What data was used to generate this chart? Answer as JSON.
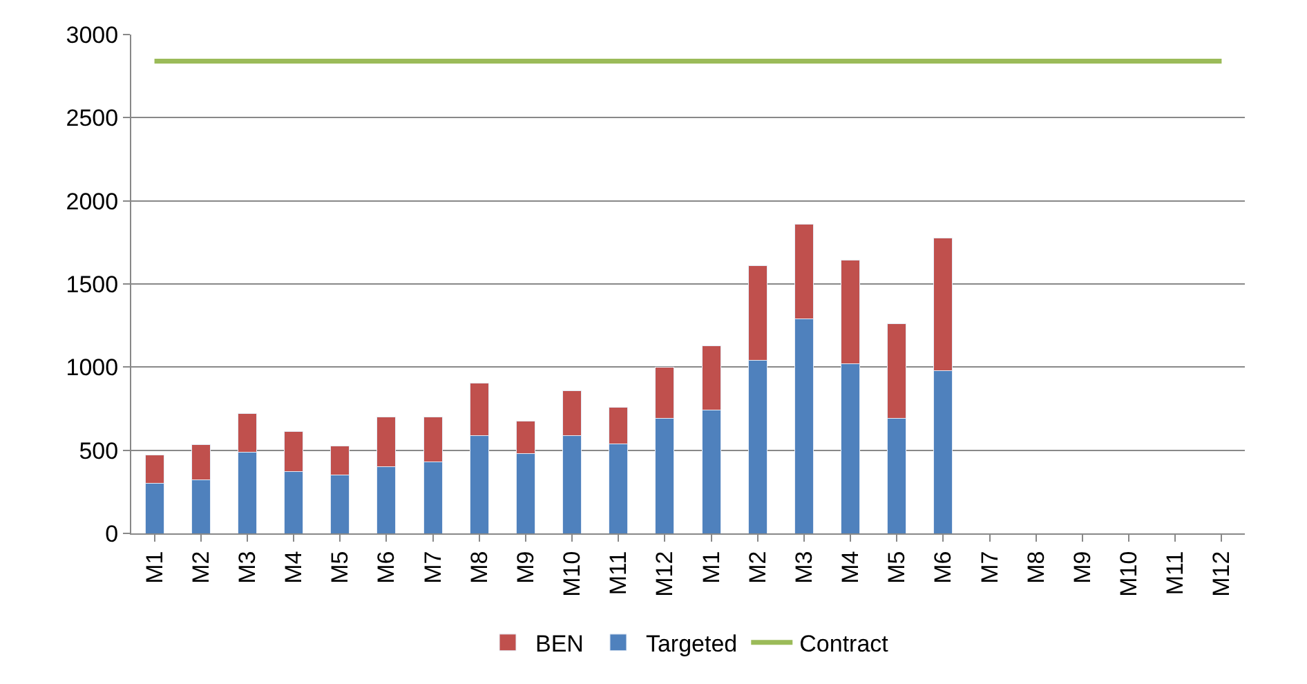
{
  "chart_data": {
    "type": "bar",
    "stacked": true,
    "categories": [
      "M1",
      "M2",
      "M3",
      "M4",
      "M5",
      "M6",
      "M7",
      "M8",
      "M9",
      "M10",
      "M11",
      "M12",
      "M1",
      "M2",
      "M3",
      "M4",
      "M5",
      "M6",
      "M7",
      "M8",
      "M9",
      "M10",
      "M11",
      "M12"
    ],
    "series": [
      {
        "name": "Targeted",
        "color": "#4f81bd",
        "values": [
          300,
          320,
          490,
          370,
          350,
          400,
          430,
          590,
          480,
          590,
          540,
          690,
          740,
          1040,
          1290,
          1020,
          690,
          980,
          null,
          null,
          null,
          null,
          null,
          null
        ]
      },
      {
        "name": "BEN",
        "color": "#c0504d",
        "values": [
          170,
          215,
          230,
          245,
          175,
          300,
          270,
          315,
          195,
          270,
          220,
          310,
          390,
          570,
          570,
          625,
          570,
          795,
          null,
          null,
          null,
          null,
          null,
          null
        ]
      },
      {
        "name": "Contract",
        "type": "line",
        "color": "#9bbb59",
        "values": [
          2840,
          2840,
          2840,
          2840,
          2840,
          2840,
          2840,
          2840,
          2840,
          2840,
          2840,
          2840,
          2840,
          2840,
          2840,
          2840,
          2840,
          2840,
          2840,
          2840,
          2840,
          2840,
          2840,
          2840
        ]
      }
    ],
    "ylim": [
      0,
      3000
    ],
    "yticks": [
      0,
      500,
      1000,
      1500,
      2000,
      2500,
      3000
    ],
    "grid": "y",
    "legend": "bottom",
    "marker": "none"
  }
}
